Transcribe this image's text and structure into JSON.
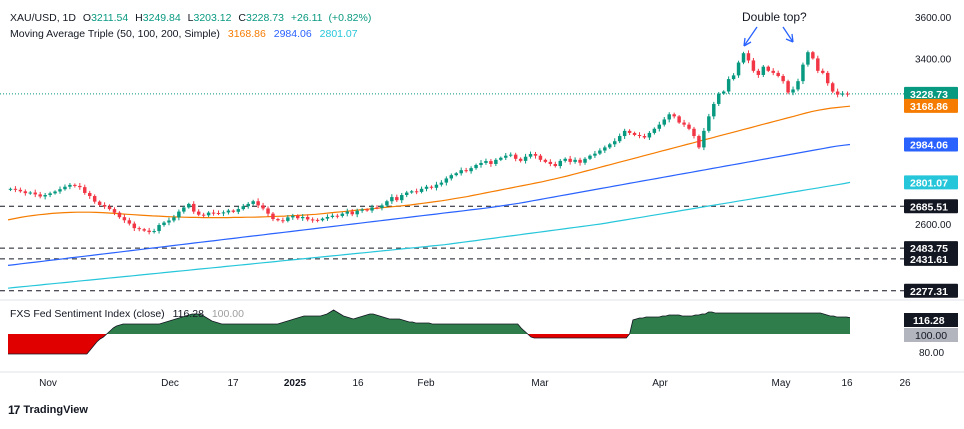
{
  "header": {
    "symbol": "XAU/USD",
    "interval": "1D",
    "o_label": "O",
    "open": "3211.54",
    "h_label": "H",
    "high": "3249.84",
    "l_label": "L",
    "low": "3203.12",
    "c_label": "C",
    "close": "3228.73",
    "change": "+26.11",
    "change_pct": "(+0.82%)",
    "ma_name": "Moving Average Triple (50, 100, 200, Simple)",
    "ma_values": [
      "3168.86",
      "2984.06",
      "2801.07"
    ]
  },
  "annotation": "Double top?",
  "colors": {
    "up": "#089981",
    "down": "#f23645",
    "ma50": "#f57c00",
    "ma100": "#2962ff",
    "ma200": "#26c6da",
    "sentiment_fill_up": "#2e7d4a",
    "sentiment_fill_down": "#e00000",
    "price_badge": "#089981",
    "ma50_badge": "#f57c00",
    "ma100_badge": "#2962ff",
    "ma200_badge": "#26c6da",
    "level_badge": "#131722"
  },
  "chart_data": [
    {
      "type": "candlestick",
      "title": "XAU/USD, 1D",
      "y_ticks": [
        2600.0,
        3400.0,
        3600.0
      ],
      "x_ticks": [
        "Nov",
        "Dec",
        "17",
        "2025",
        "16",
        "Feb",
        "Mar",
        "Apr",
        "May",
        "16",
        "26"
      ],
      "price_badges": [
        {
          "label": "3228.73",
          "value": 3228.73,
          "kind": "price"
        },
        {
          "label": "3168.86",
          "value": 3168.86,
          "kind": "ma50"
        },
        {
          "label": "2984.06",
          "value": 2984.06,
          "kind": "ma100"
        },
        {
          "label": "2801.07",
          "value": 2801.07,
          "kind": "ma200"
        },
        {
          "label": "2685.51",
          "value": 2685.51,
          "kind": "level"
        },
        {
          "label": "2483.75",
          "value": 2483.75,
          "kind": "level"
        },
        {
          "label": "2431.61",
          "value": 2431.61,
          "kind": "level"
        },
        {
          "label": "2277.31",
          "value": 2277.31,
          "kind": "level"
        }
      ],
      "horizontal_levels": [
        2685.51,
        2483.75,
        2431.61,
        2277.31
      ],
      "last_close": 3228.73,
      "closes": [
        2770,
        2765,
        2758,
        2749,
        2752,
        2743,
        2733,
        2740,
        2748,
        2757,
        2768,
        2780,
        2789,
        2784,
        2778,
        2750,
        2735,
        2708,
        2692,
        2684,
        2672,
        2655,
        2633,
        2618,
        2602,
        2580,
        2575,
        2568,
        2561,
        2566,
        2595,
        2607,
        2617,
        2632,
        2660,
        2680,
        2697,
        2660,
        2645,
        2642,
        2655,
        2653,
        2652,
        2656,
        2665,
        2659,
        2672,
        2686,
        2697,
        2710,
        2690,
        2675,
        2650,
        2624,
        2618,
        2615,
        2632,
        2640,
        2628,
        2634,
        2622,
        2620,
        2618,
        2626,
        2634,
        2640,
        2639,
        2650,
        2660,
        2647,
        2664,
        2670,
        2665,
        2680,
        2678,
        2690,
        2710,
        2730,
        2715,
        2740,
        2752,
        2758,
        2755,
        2770,
        2780,
        2775,
        2790,
        2800,
        2820,
        2836,
        2845,
        2860,
        2855,
        2870,
        2885,
        2895,
        2904,
        2890,
        2910,
        2920,
        2930,
        2935,
        2915,
        2905,
        2925,
        2938,
        2930,
        2910,
        2900,
        2890,
        2880,
        2905,
        2915,
        2900,
        2910,
        2896,
        2915,
        2930,
        2940,
        2955,
        2970,
        2985,
        3000,
        3025,
        3050,
        3040,
        3030,
        3025,
        3018,
        3040,
        3060,
        3080,
        3105,
        3130,
        3120,
        3090,
        3080,
        3060,
        3025,
        2970,
        3050,
        3120,
        3180,
        3230,
        3240,
        3300,
        3318,
        3380,
        3425,
        3390,
        3340,
        3320,
        3360,
        3340,
        3330,
        3315,
        3290,
        3235,
        3250,
        3290,
        3370,
        3430,
        3400,
        3340,
        3330,
        3280,
        3240,
        3225,
        3230,
        3228.73
      ],
      "ma50": [
        2620,
        2626,
        2632,
        2637,
        2641,
        2645,
        2648,
        2651,
        2653,
        2655,
        2656,
        2657,
        2657,
        2657,
        2656,
        2655,
        2653,
        2651,
        2649,
        2647,
        2645,
        2643,
        2641,
        2639,
        2638,
        2636,
        2635,
        2634,
        2633,
        2632,
        2632,
        2631,
        2631,
        2631,
        2631,
        2631,
        2632,
        2632,
        2633,
        2633,
        2634,
        2635,
        2636,
        2637,
        2638,
        2640,
        2641,
        2643,
        2645,
        2647,
        2650,
        2653,
        2656,
        2659,
        2662,
        2665,
        2668,
        2671,
        2674,
        2677,
        2680,
        2683,
        2686,
        2689,
        2692,
        2696,
        2700,
        2704,
        2708,
        2712,
        2717,
        2722,
        2727,
        2732,
        2738,
        2744,
        2750,
        2756,
        2762,
        2768,
        2774,
        2780,
        2786,
        2792,
        2798,
        2804,
        2811,
        2818,
        2825,
        2832,
        2840,
        2848,
        2856,
        2864,
        2872,
        2880,
        2888,
        2896,
        2904,
        2912,
        2920,
        2928,
        2936,
        2944,
        2952,
        2960,
        2968,
        2976,
        2984,
        2992,
        3000,
        3008,
        3016,
        3024,
        3032,
        3040,
        3048,
        3056,
        3064,
        3072,
        3080,
        3088,
        3096,
        3104,
        3112,
        3120,
        3128,
        3136,
        3144,
        3150,
        3155,
        3160,
        3163,
        3166,
        3168.86
      ],
      "ma100": [
        2400,
        2404,
        2408,
        2412,
        2416,
        2420,
        2424,
        2428,
        2432,
        2436,
        2440,
        2444,
        2448,
        2452,
        2456,
        2460,
        2464,
        2468,
        2472,
        2476,
        2480,
        2484,
        2488,
        2492,
        2496,
        2500,
        2504,
        2508,
        2512,
        2516,
        2520,
        2524,
        2528,
        2532,
        2536,
        2540,
        2544,
        2548,
        2552,
        2556,
        2560,
        2564,
        2568,
        2572,
        2576,
        2580,
        2584,
        2588,
        2592,
        2596,
        2600,
        2604,
        2608,
        2612,
        2616,
        2620,
        2624,
        2628,
        2632,
        2636,
        2640,
        2644,
        2648,
        2652,
        2656,
        2660,
        2664,
        2668,
        2672,
        2676,
        2680,
        2685,
        2690,
        2695,
        2700,
        2706,
        2712,
        2718,
        2724,
        2730,
        2736,
        2742,
        2748,
        2754,
        2760,
        2766,
        2772,
        2778,
        2784,
        2790,
        2796,
        2802,
        2808,
        2814,
        2820,
        2826,
        2832,
        2838,
        2844,
        2850,
        2856,
        2862,
        2868,
        2874,
        2880,
        2886,
        2892,
        2898,
        2904,
        2910,
        2916,
        2922,
        2928,
        2934,
        2940,
        2946,
        2952,
        2958,
        2964,
        2970,
        2976,
        2980,
        2984.06
      ],
      "ma200": [
        2290,
        2293,
        2296,
        2299,
        2302,
        2305,
        2308,
        2311,
        2314,
        2317,
        2320,
        2323,
        2326,
        2329,
        2332,
        2335,
        2338,
        2341,
        2344,
        2347,
        2350,
        2353,
        2356,
        2359,
        2362,
        2365,
        2368,
        2371,
        2374,
        2377,
        2380,
        2383,
        2386,
        2389,
        2392,
        2395,
        2398,
        2401,
        2404,
        2407,
        2410,
        2413,
        2416,
        2419,
        2422,
        2425,
        2428,
        2431,
        2434,
        2437,
        2440,
        2443,
        2446,
        2449,
        2452,
        2455,
        2458,
        2461,
        2464,
        2467,
        2470,
        2473,
        2476,
        2479,
        2482,
        2485,
        2488,
        2491,
        2494,
        2497,
        2500,
        2504,
        2508,
        2512,
        2516,
        2520,
        2524,
        2528,
        2532,
        2536,
        2540,
        2544,
        2548,
        2552,
        2556,
        2560,
        2564,
        2568,
        2572,
        2576,
        2580,
        2584,
        2588,
        2592,
        2596,
        2600,
        2605,
        2610,
        2615,
        2620,
        2625,
        2630,
        2635,
        2640,
        2645,
        2650,
        2655,
        2660,
        2665,
        2670,
        2675,
        2680,
        2685,
        2690,
        2695,
        2700,
        2705,
        2710,
        2715,
        2720,
        2725,
        2730,
        2735,
        2740,
        2745,
        2750,
        2755,
        2760,
        2765,
        2770,
        2775,
        2780,
        2785,
        2790,
        2795,
        2801.07
      ]
    },
    {
      "type": "area",
      "title": "FXS Fed Sentiment Index (close)",
      "last_value": "116.28",
      "baseline": "100.00",
      "y_ticks": [
        80.0
      ],
      "values": [
        80,
        80,
        80,
        80,
        80,
        80,
        80,
        80,
        80,
        80,
        80,
        80,
        80,
        80,
        80,
        80,
        80,
        80,
        80,
        80,
        80,
        80,
        80,
        80,
        80,
        84,
        88,
        92,
        95,
        97,
        100,
        103,
        106,
        108,
        109,
        110,
        110,
        110,
        110,
        110,
        110,
        110,
        110,
        110,
        110,
        110,
        110,
        111,
        112,
        113,
        114,
        115,
        116,
        117,
        118,
        119,
        120,
        120,
        120,
        119,
        117,
        115,
        113,
        112,
        111,
        110,
        110,
        110,
        110,
        110,
        110,
        110,
        110,
        110,
        110,
        110,
        110,
        110,
        110,
        110,
        110,
        110,
        110,
        111,
        112,
        113,
        114,
        115,
        116,
        117,
        118,
        118,
        118,
        118,
        118,
        118,
        119,
        120,
        122,
        124,
        122,
        120,
        118,
        117,
        116,
        115,
        116,
        117,
        118,
        119,
        120,
        120,
        119,
        118,
        117,
        116,
        115,
        115,
        115,
        115,
        114,
        113,
        112,
        112,
        111,
        111,
        111,
        111,
        111,
        110,
        110,
        110,
        110,
        110,
        110,
        110,
        110,
        110,
        110,
        110,
        110,
        110,
        110,
        110,
        110,
        110,
        110,
        110,
        110,
        110,
        110,
        110,
        110,
        110,
        110,
        110,
        106,
        103,
        100,
        97,
        96,
        96,
        96,
        96,
        96,
        96,
        96,
        96,
        96,
        96,
        96,
        96,
        96,
        96,
        96,
        96,
        96,
        96,
        96,
        96,
        96,
        96,
        96,
        96,
        96,
        96,
        96,
        96,
        96,
        100,
        114,
        115,
        116,
        116,
        117,
        117,
        117,
        117,
        117,
        118,
        118,
        119,
        119,
        119,
        119,
        118,
        118,
        118,
        118,
        119,
        119,
        120,
        120,
        122,
        122,
        121,
        121,
        121,
        121,
        121,
        121,
        121,
        121,
        121,
        121,
        121,
        121,
        121,
        121,
        121,
        121,
        121,
        121,
        121,
        121,
        121,
        121,
        121,
        121,
        121,
        121,
        121,
        121,
        121,
        121,
        121,
        121,
        121,
        120,
        119,
        118,
        118,
        117,
        117,
        117,
        117,
        116.28
      ]
    }
  ],
  "footer": {
    "brand": "TradingView",
    "logo_text": "17"
  }
}
